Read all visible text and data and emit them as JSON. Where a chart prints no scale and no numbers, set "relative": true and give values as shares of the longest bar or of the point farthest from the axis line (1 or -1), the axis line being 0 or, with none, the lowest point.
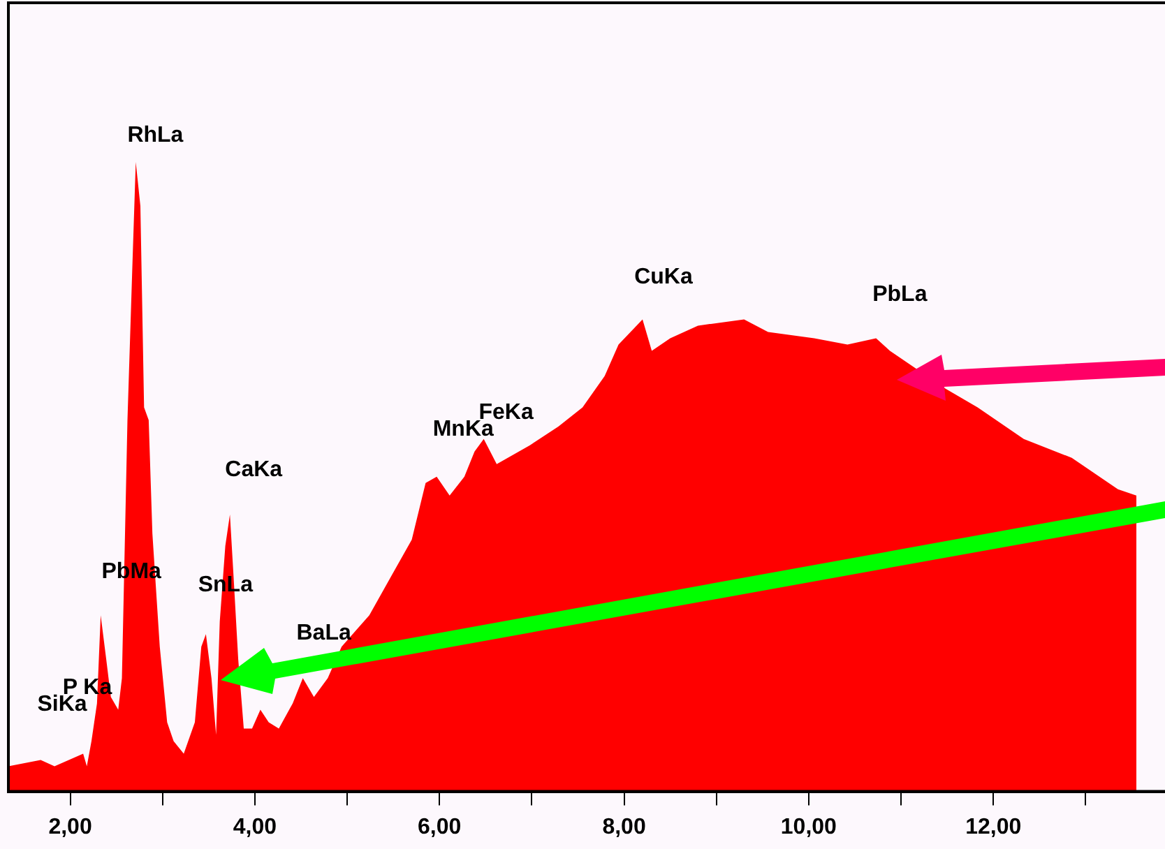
{
  "chart_data": {
    "type": "area",
    "relative": true,
    "color": "#ff0000",
    "grid": false,
    "legend": false,
    "x": [
      1.33,
      1.68,
      1.83,
      2.14,
      2.18,
      2.23,
      2.29,
      2.33,
      2.39,
      2.44,
      2.52,
      2.56,
      2.62,
      2.67,
      2.71,
      2.76,
      2.8,
      2.85,
      2.89,
      2.97,
      3.05,
      3.12,
      3.23,
      3.35,
      3.42,
      3.47,
      3.53,
      3.58,
      3.62,
      3.68,
      3.73,
      3.77,
      3.82,
      3.88,
      3.97,
      4.06,
      4.15,
      4.26,
      4.41,
      4.52,
      4.64,
      4.79,
      4.94,
      5.24,
      5.47,
      5.7,
      5.85,
      5.97,
      6.11,
      6.27,
      6.38,
      6.48,
      6.62,
      6.98,
      7.29,
      7.55,
      7.79,
      7.94,
      8.2,
      8.3,
      8.5,
      8.8,
      9.3,
      9.56,
      10.06,
      10.42,
      10.73,
      10.88,
      11.48,
      11.83,
      12.33,
      12.85,
      13.35,
      13.55
    ],
    "values": [
      0.04,
      0.05,
      0.04,
      0.06,
      0.04,
      0.08,
      0.14,
      0.28,
      0.21,
      0.15,
      0.13,
      0.18,
      0.59,
      0.82,
      1,
      0.93,
      0.61,
      0.59,
      0.41,
      0.23,
      0.11,
      0.08,
      0.06,
      0.11,
      0.23,
      0.25,
      0.18,
      0.09,
      0.27,
      0.39,
      0.44,
      0.34,
      0.21,
      0.1,
      0.1,
      0.13,
      0.11,
      0.1,
      0.14,
      0.18,
      0.15,
      0.18,
      0.23,
      0.28,
      0.34,
      0.4,
      0.49,
      0.5,
      0.47,
      0.5,
      0.54,
      0.56,
      0.52,
      0.55,
      0.58,
      0.61,
      0.66,
      0.71,
      0.75,
      0.7,
      0.72,
      0.74,
      0.75,
      0.73,
      0.72,
      0.71,
      0.72,
      0.7,
      0.64,
      0.61,
      0.56,
      0.53,
      0.48,
      0.47
    ],
    "xlim": [
      1.33,
      13.86
    ],
    "xticks": [
      {
        "value": 2,
        "label": "2,00"
      },
      {
        "value": 3,
        "label": null
      },
      {
        "value": 4,
        "label": "4,00"
      },
      {
        "value": 5,
        "label": null
      },
      {
        "value": 6,
        "label": "6,00"
      },
      {
        "value": 7,
        "label": null
      },
      {
        "value": 8,
        "label": "8,00"
      },
      {
        "value": 9,
        "label": null
      },
      {
        "value": 10,
        "label": "10,00"
      },
      {
        "value": 11,
        "label": null
      },
      {
        "value": 12,
        "label": "12,00"
      },
      {
        "value": 13,
        "label": null
      }
    ],
    "annotations": [
      {
        "text": "SiKa",
        "x": 2.14,
        "y": 0.06
      },
      {
        "text": "P Ka",
        "x": 2.23,
        "y": 0.08
      },
      {
        "text": "PbMa",
        "x": 2.33,
        "y": 0.28
      },
      {
        "text": "RhLa",
        "x": 2.71,
        "y": 1
      },
      {
        "text": "SnLa",
        "x": 3.47,
        "y": 0.25
      },
      {
        "text": "CaKa",
        "x": 3.73,
        "y": 0.44
      },
      {
        "text": "BaLa",
        "x": 4.52,
        "y": 0.18
      },
      {
        "text": "MnKa",
        "x": 5.97,
        "y": 0.5
      },
      {
        "text": "FeKa",
        "x": 6.48,
        "y": 0.56
      },
      {
        "text": "CuKa",
        "x": 8.2,
        "y": 0.75
      },
      {
        "text": "PbLa",
        "x": 10.73,
        "y": 0.72
      }
    ]
  }
}
